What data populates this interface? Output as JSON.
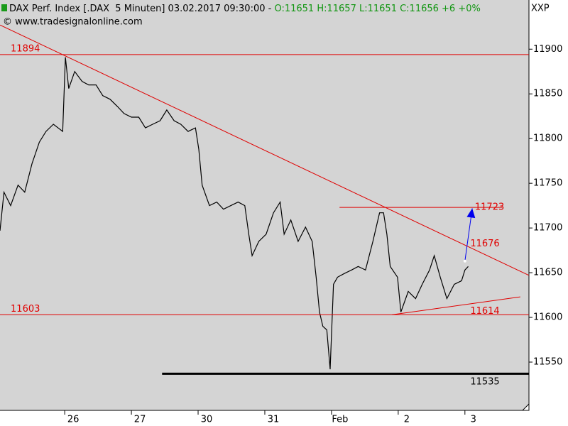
{
  "chart_data": {
    "type": "line",
    "header": {
      "title": "DAX Perf. Index [.DAX  5 Minuten] 03.02.2017 09:30:00 -",
      "ohlc": "O:11651 H:11657 L:11651 C:11656 +6 +0%"
    },
    "source": "© www.tradesignalonline.com",
    "corner_label": "XXP",
    "color": "#000000",
    "x": [
      0.03,
      0.09,
      0.19,
      0.3,
      0.4,
      0.51,
      0.62,
      0.72,
      0.83,
      0.97,
      1.01,
      1.06,
      1.15,
      1.26,
      1.36,
      1.47,
      1.57,
      1.68,
      1.79,
      1.89,
      2.0,
      2.11,
      2.21,
      2.32,
      2.43,
      2.53,
      2.64,
      2.74,
      2.85,
      2.96,
      3.01,
      3.06,
      3.17,
      3.28,
      3.38,
      3.49,
      3.6,
      3.7,
      3.76,
      3.81,
      3.91,
      4.02,
      4.13,
      4.23,
      4.29,
      4.39,
      4.5,
      4.61,
      4.71,
      4.77,
      4.82,
      4.87,
      4.93,
      4.98,
      5.03,
      5.09,
      5.19,
      5.3,
      5.4,
      5.51,
      5.62,
      5.72,
      5.78,
      5.83,
      5.88,
      5.99,
      6.04,
      6.15,
      6.26,
      6.36,
      6.47,
      6.54,
      6.63,
      6.73,
      6.84,
      6.95,
      7.0,
      7.05
    ],
    "values": [
      11697,
      11740,
      11725,
      11748,
      11740,
      11772,
      11796,
      11808,
      11816,
      11808,
      11891,
      11856,
      11875,
      11864,
      11860,
      11860,
      11848,
      11844,
      11836,
      11828,
      11824,
      11824,
      11812,
      11816,
      11820,
      11832,
      11820,
      11816,
      11808,
      11812,
      11788,
      11748,
      11725,
      11729,
      11721,
      11725,
      11729,
      11725,
      11693,
      11669,
      11685,
      11693,
      11717,
      11729,
      11693,
      11709,
      11685,
      11701,
      11685,
      11645,
      11606,
      11590,
      11586,
      11542,
      11637,
      11645,
      11649,
      11653,
      11657,
      11653,
      11685,
      11717,
      11717,
      11693,
      11657,
      11645,
      11606,
      11629,
      11621,
      11637,
      11653,
      11669,
      11645,
      11621,
      11637,
      11641,
      11653,
      11657
    ],
    "xlim": [
      0.03,
      7.96
    ],
    "ylim": [
      11496,
      11955
    ],
    "xticks": [
      {
        "value": 1,
        "label": "26"
      },
      {
        "value": 2,
        "label": "27"
      },
      {
        "value": 3,
        "label": "30"
      },
      {
        "value": 4,
        "label": "31"
      },
      {
        "value": 5,
        "label": "Feb"
      },
      {
        "value": 6,
        "label": "2"
      },
      {
        "value": 7,
        "label": "3"
      }
    ],
    "yticks": [
      11550,
      11600,
      11650,
      11700,
      11750,
      11800,
      11850,
      11900
    ],
    "lines": [
      {
        "x": [
          0.03,
          7.96
        ],
        "y": [
          11894,
          11894
        ],
        "color": "#e00000"
      },
      {
        "x": [
          0.03,
          7.96
        ],
        "y": [
          11603,
          11603
        ],
        "color": "#e00000"
      },
      {
        "x": [
          0.03,
          7.96
        ],
        "y": [
          11927,
          11647
        ],
        "color": "#e00000"
      },
      {
        "x": [
          5.12,
          7.56
        ],
        "y": [
          11723,
          11723
        ],
        "color": "#e00000"
      },
      {
        "x": [
          5.91,
          7.83
        ],
        "y": [
          11603,
          11623
        ],
        "color": "#e00000"
      },
      {
        "x": [
          2.46,
          7.96
        ],
        "y": [
          11537,
          11537
        ],
        "color": "#000000",
        "weight": "heavy"
      },
      {
        "x": [
          7.0,
          7.11
        ],
        "y": [
          11663,
          11722
        ],
        "color": "#0000ee",
        "arrow": true
      }
    ],
    "labels": [
      {
        "x": 0.19,
        "y": 11894,
        "color": "#e00000",
        "anchor": "above"
      },
      {
        "x": 0.19,
        "y": 11603,
        "color": "#e00000",
        "anchor": "above"
      },
      {
        "x": 7.15,
        "y": 11723,
        "color": "#e00000",
        "anchor": "center"
      },
      {
        "x": 7.08,
        "y": 11676,
        "color": "#e00000",
        "anchor": "above"
      },
      {
        "x": 7.08,
        "y": 11614,
        "color": "#e00000",
        "anchor": "below"
      },
      {
        "x": 7.08,
        "y": 11535,
        "color": "#000000",
        "anchor": "below"
      }
    ]
  }
}
